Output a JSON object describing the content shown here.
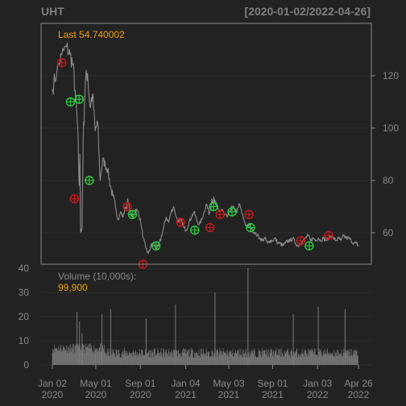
{
  "chart_data": {
    "type": "line",
    "title": "UHT",
    "date_range": "[2020-01-02/2022-04-26]",
    "colors": {
      "background": "#222222",
      "frame": "#8a8a8a",
      "grid": "#2e2e2e",
      "price": "#8c8c8c",
      "volume": "#7a7a7a",
      "marker_red": "#c41a1a",
      "marker_green": "#2ecc40",
      "annotation": "#f0a010"
    },
    "price_panel": {
      "last_label": "Last 54.740002",
      "ylim": [
        48,
        140
      ],
      "yticks": [
        60,
        80,
        100,
        120
      ],
      "series": {
        "name": "UHT",
        "x": [
          "2020-01-02",
          "2020-01-15",
          "2020-01-28",
          "2020-02-10",
          "2020-02-20",
          "2020-02-28",
          "2020-03-06",
          "2020-03-12",
          "2020-03-16",
          "2020-03-18",
          "2020-03-20",
          "2020-03-24",
          "2020-03-27",
          "2020-04-02",
          "2020-04-08",
          "2020-04-15",
          "2020-04-22",
          "2020-04-29",
          "2020-05-06",
          "2020-05-13",
          "2020-05-20",
          "2020-05-27",
          "2020-06-03",
          "2020-06-10",
          "2020-06-17",
          "2020-06-24",
          "2020-07-01",
          "2020-07-08",
          "2020-07-15",
          "2020-07-22",
          "2020-07-29",
          "2020-08-05",
          "2020-08-12",
          "2020-08-19",
          "2020-08-26",
          "2020-09-02",
          "2020-09-09",
          "2020-09-16",
          "2020-09-23",
          "2020-09-30",
          "2020-10-07",
          "2020-10-14",
          "2020-10-21",
          "2020-10-28",
          "2020-11-04",
          "2020-11-11",
          "2020-11-18",
          "2020-11-25",
          "2020-12-02",
          "2020-12-09",
          "2020-12-16",
          "2020-12-23",
          "2020-12-30",
          "2021-01-06",
          "2021-01-13",
          "2021-01-20",
          "2021-01-27",
          "2021-02-03",
          "2021-02-10",
          "2021-02-17",
          "2021-02-24",
          "2021-03-03",
          "2021-03-10",
          "2021-03-17",
          "2021-03-24",
          "2021-03-31",
          "2021-04-07",
          "2021-04-14",
          "2021-04-21",
          "2021-04-28",
          "2021-05-05",
          "2021-05-12",
          "2021-05-19",
          "2021-05-26",
          "2021-06-02",
          "2021-06-09",
          "2021-06-16",
          "2021-06-23",
          "2021-06-30",
          "2021-07-07",
          "2021-07-14",
          "2021-07-21",
          "2021-07-28",
          "2021-08-04",
          "2021-08-11",
          "2021-08-18",
          "2021-08-25",
          "2021-09-01",
          "2021-09-08",
          "2021-09-15",
          "2021-09-22",
          "2021-09-29",
          "2021-10-06",
          "2021-10-13",
          "2021-10-20",
          "2021-10-27",
          "2021-11-03",
          "2021-11-10",
          "2021-11-17",
          "2021-11-24",
          "2021-12-01",
          "2021-12-08",
          "2021-12-15",
          "2021-12-22",
          "2021-12-29",
          "2022-01-05",
          "2022-01-12",
          "2022-01-19",
          "2022-01-26",
          "2022-02-02",
          "2022-02-09",
          "2022-02-16",
          "2022-02-23",
          "2022-03-02",
          "2022-03-09",
          "2022-03-16",
          "2022-03-23",
          "2022-03-30",
          "2022-04-06",
          "2022-04-13",
          "2022-04-20",
          "2022-04-26"
        ],
        "y": [
          115,
          122,
          128,
          131,
          128,
          124,
          112,
          100,
          78,
          90,
          60,
          62,
          95,
          118,
          121,
          108,
          113,
          99,
          102,
          80,
          88,
          86,
          84,
          78,
          74,
          70,
          65,
          68,
          66,
          70,
          72,
          67,
          66,
          69,
          68,
          64,
          58,
          54,
          52,
          55,
          56,
          54,
          55,
          58,
          62,
          66,
          64,
          68,
          70,
          66,
          64,
          65,
          62,
          61,
          64,
          66,
          68,
          65,
          63,
          65,
          68,
          71,
          67,
          73,
          72,
          70,
          68,
          69,
          67,
          66,
          68,
          70,
          69,
          68,
          71,
          67,
          64,
          62,
          63,
          61,
          60,
          59,
          58,
          57,
          58,
          56,
          57,
          57,
          58,
          56,
          56,
          55,
          56,
          57,
          57,
          58,
          56,
          55,
          56,
          57,
          58,
          59,
          57,
          58,
          57,
          58,
          57,
          58,
          57,
          58,
          59,
          58,
          57,
          58,
          57,
          59,
          58,
          58,
          57,
          56,
          56,
          55
        ]
      },
      "markers": [
        {
          "x": "2020-01-28",
          "y": 125,
          "color": "red"
        },
        {
          "x": "2020-02-21",
          "y": 110,
          "color": "green"
        },
        {
          "x": "2020-03-03",
          "y": 73,
          "color": "red"
        },
        {
          "x": "2020-03-16",
          "y": 111,
          "color": "green"
        },
        {
          "x": "2020-04-13",
          "y": 80,
          "color": "green"
        },
        {
          "x": "2020-07-27",
          "y": 70,
          "color": "red"
        },
        {
          "x": "2020-08-10",
          "y": 67,
          "color": "green"
        },
        {
          "x": "2020-09-08",
          "y": 48,
          "color": "red"
        },
        {
          "x": "2020-10-14",
          "y": 55,
          "color": "green"
        },
        {
          "x": "2020-12-21",
          "y": 64,
          "color": "red"
        },
        {
          "x": "2021-01-29",
          "y": 61,
          "color": "green"
        },
        {
          "x": "2021-03-12",
          "y": 62,
          "color": "red"
        },
        {
          "x": "2021-03-22",
          "y": 70,
          "color": "green"
        },
        {
          "x": "2021-04-09",
          "y": 67,
          "color": "red"
        },
        {
          "x": "2021-05-12",
          "y": 68,
          "color": "green"
        },
        {
          "x": "2021-06-28",
          "y": 67,
          "color": "red"
        },
        {
          "x": "2021-07-02",
          "y": 62,
          "color": "green"
        },
        {
          "x": "2021-11-18",
          "y": 57,
          "color": "red"
        },
        {
          "x": "2021-12-11",
          "y": 55,
          "color": "green"
        },
        {
          "x": "2022-02-03",
          "y": 59,
          "color": "red"
        }
      ]
    },
    "volume_panel": {
      "label": "Volume (10,000s):",
      "last_value": "99,900",
      "ylim": [
        0,
        40
      ],
      "yticks": [
        0,
        10,
        20,
        30,
        40
      ],
      "unit": "10,000s",
      "spikes": [
        {
          "x": "2020-03-10",
          "v": 22
        },
        {
          "x": "2020-03-17",
          "v": 18
        },
        {
          "x": "2020-03-24",
          "v": 13
        },
        {
          "x": "2020-05-18",
          "v": 21
        },
        {
          "x": "2020-06-11",
          "v": 23
        },
        {
          "x": "2020-09-17",
          "v": 19
        },
        {
          "x": "2020-12-07",
          "v": 25
        },
        {
          "x": "2021-03-26",
          "v": 30
        },
        {
          "x": "2021-06-25",
          "v": 40
        },
        {
          "x": "2021-10-28",
          "v": 21
        },
        {
          "x": "2022-01-05",
          "v": 24
        },
        {
          "x": "2022-03-20",
          "v": 23
        }
      ]
    },
    "x_axis": {
      "min": "2020-01-02",
      "max": "2022-04-26",
      "ticks": [
        {
          "x": "2020-01-02",
          "label": "Jan 02",
          "year": "2020"
        },
        {
          "x": "2020-05-01",
          "label": "May 01",
          "year": "2020"
        },
        {
          "x": "2020-09-01",
          "label": "Sep 01",
          "year": "2020"
        },
        {
          "x": "2021-01-04",
          "label": "Jan 04",
          "year": "2021"
        },
        {
          "x": "2021-05-03",
          "label": "May 03",
          "year": "2021"
        },
        {
          "x": "2021-09-01",
          "label": "Sep 01",
          "year": "2021"
        },
        {
          "x": "2022-01-03",
          "label": "Jan 03",
          "year": "2022"
        },
        {
          "x": "2022-04-26",
          "label": "Apr 26",
          "year": "2022"
        }
      ]
    },
    "grid": true
  }
}
